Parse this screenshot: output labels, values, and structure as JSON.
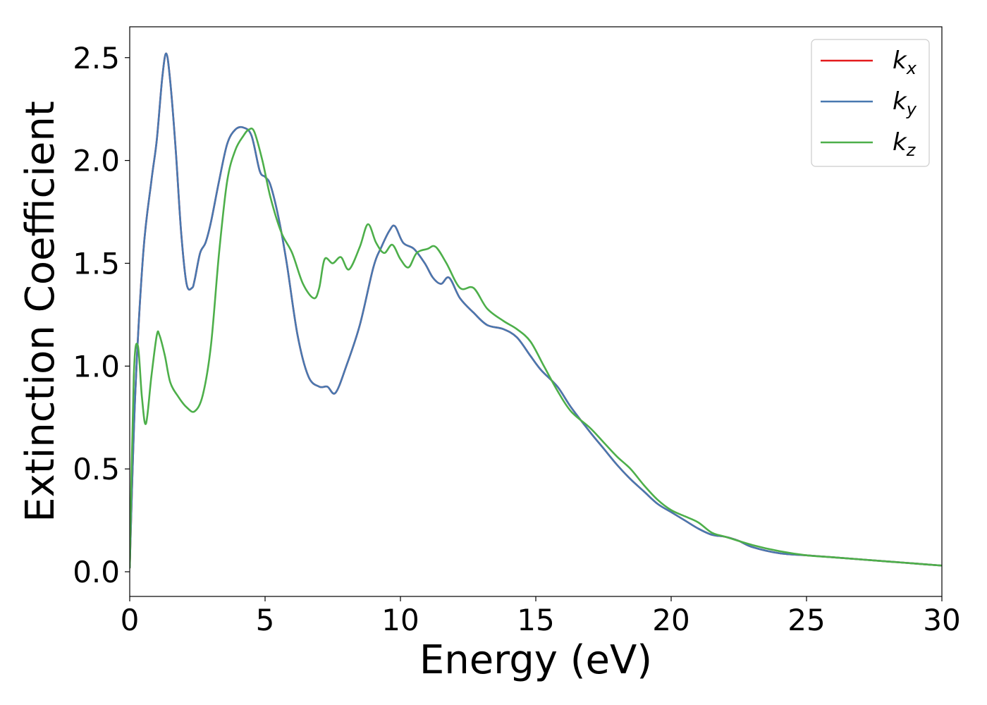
{
  "chart_data": {
    "type": "line",
    "title": "",
    "xlabel": "Energy (eV)",
    "ylabel": "Extinction Coefficient",
    "xlim": [
      0,
      30
    ],
    "ylim": [
      -0.12,
      2.65
    ],
    "xticks": [
      0,
      5,
      10,
      15,
      20,
      25,
      30
    ],
    "xtick_labels": [
      "0",
      "5",
      "10",
      "15",
      "20",
      "25",
      "30"
    ],
    "yticks": [
      0.0,
      0.5,
      1.0,
      1.5,
      2.0,
      2.5
    ],
    "ytick_labels": [
      "0.0",
      "0.5",
      "1.0",
      "1.5",
      "2.0",
      "2.5"
    ],
    "grid": false,
    "legend": "top-right",
    "series": [
      {
        "name": "k_x",
        "label_main": "k",
        "label_sub": "x",
        "color": "#e41a1c",
        "x": [
          0,
          0.2,
          0.5,
          0.8,
          1.0,
          1.2,
          1.35,
          1.5,
          1.7,
          1.9,
          2.1,
          2.3,
          2.4,
          2.6,
          2.8,
          3.0,
          3.3,
          3.6,
          3.9,
          4.2,
          4.5,
          4.8,
          5.0,
          5.2,
          5.5,
          5.8,
          6.2,
          6.6,
          7.0,
          7.3,
          7.6,
          8.0,
          8.5,
          9.0,
          9.3,
          9.6,
          9.8,
          10.1,
          10.5,
          10.9,
          11.2,
          11.5,
          11.8,
          12.2,
          12.7,
          13.2,
          13.8,
          14.3,
          14.8,
          15.2,
          15.8,
          16.3,
          17.0,
          17.5,
          18.0,
          18.5,
          19.0,
          19.5,
          20.0,
          20.5,
          21.0,
          21.5,
          22.0,
          22.5,
          23.0,
          24.0,
          25.0,
          26.0,
          27.0,
          28.0,
          29.0,
          30.0
        ],
        "values": [
          0.02,
          0.85,
          1.55,
          1.9,
          2.1,
          2.4,
          2.52,
          2.38,
          2.05,
          1.65,
          1.4,
          1.38,
          1.42,
          1.55,
          1.6,
          1.7,
          1.9,
          2.08,
          2.15,
          2.16,
          2.12,
          1.95,
          1.92,
          1.88,
          1.72,
          1.5,
          1.15,
          0.95,
          0.9,
          0.9,
          0.87,
          1.0,
          1.2,
          1.48,
          1.58,
          1.66,
          1.68,
          1.6,
          1.57,
          1.5,
          1.43,
          1.4,
          1.43,
          1.33,
          1.26,
          1.2,
          1.18,
          1.14,
          1.05,
          0.98,
          0.9,
          0.8,
          0.68,
          0.6,
          0.52,
          0.45,
          0.39,
          0.33,
          0.29,
          0.25,
          0.21,
          0.18,
          0.17,
          0.15,
          0.12,
          0.09,
          0.08,
          0.07,
          0.06,
          0.05,
          0.04,
          0.03
        ]
      },
      {
        "name": "k_y",
        "label_main": "k",
        "label_sub": "y",
        "color": "#4878b0",
        "x": [
          0,
          0.2,
          0.5,
          0.8,
          1.0,
          1.2,
          1.35,
          1.5,
          1.7,
          1.9,
          2.1,
          2.3,
          2.4,
          2.6,
          2.8,
          3.0,
          3.3,
          3.6,
          3.9,
          4.2,
          4.5,
          4.8,
          5.0,
          5.2,
          5.5,
          5.8,
          6.2,
          6.6,
          7.0,
          7.3,
          7.6,
          8.0,
          8.5,
          9.0,
          9.3,
          9.6,
          9.8,
          10.1,
          10.5,
          10.9,
          11.2,
          11.5,
          11.8,
          12.2,
          12.7,
          13.2,
          13.8,
          14.3,
          14.8,
          15.2,
          15.8,
          16.3,
          17.0,
          17.5,
          18.0,
          18.5,
          19.0,
          19.5,
          20.0,
          20.5,
          21.0,
          21.5,
          22.0,
          22.5,
          23.0,
          24.0,
          25.0,
          26.0,
          27.0,
          28.0,
          29.0,
          30.0
        ],
        "values": [
          0.02,
          0.85,
          1.55,
          1.9,
          2.1,
          2.4,
          2.52,
          2.38,
          2.05,
          1.65,
          1.4,
          1.38,
          1.42,
          1.55,
          1.6,
          1.7,
          1.9,
          2.08,
          2.15,
          2.16,
          2.12,
          1.95,
          1.92,
          1.88,
          1.72,
          1.5,
          1.15,
          0.95,
          0.9,
          0.9,
          0.87,
          1.0,
          1.2,
          1.48,
          1.58,
          1.66,
          1.68,
          1.6,
          1.57,
          1.5,
          1.43,
          1.4,
          1.43,
          1.33,
          1.26,
          1.2,
          1.18,
          1.14,
          1.05,
          0.98,
          0.9,
          0.8,
          0.68,
          0.6,
          0.52,
          0.45,
          0.39,
          0.33,
          0.29,
          0.25,
          0.21,
          0.18,
          0.17,
          0.15,
          0.12,
          0.09,
          0.08,
          0.07,
          0.06,
          0.05,
          0.04,
          0.03
        ]
      },
      {
        "name": "k_z",
        "label_main": "k",
        "label_sub": "z",
        "color": "#4daf4a",
        "x": [
          0,
          0.15,
          0.3,
          0.45,
          0.6,
          0.8,
          1.0,
          1.1,
          1.3,
          1.5,
          1.8,
          2.1,
          2.4,
          2.7,
          3.0,
          3.3,
          3.6,
          3.9,
          4.2,
          4.4,
          4.6,
          4.9,
          5.2,
          5.6,
          6.0,
          6.4,
          6.8,
          7.0,
          7.2,
          7.5,
          7.8,
          8.1,
          8.5,
          8.8,
          9.1,
          9.4,
          9.7,
          10.0,
          10.3,
          10.6,
          11.0,
          11.3,
          11.7,
          12.2,
          12.7,
          13.2,
          13.8,
          14.3,
          14.8,
          15.3,
          15.8,
          16.3,
          17.0,
          17.5,
          18.0,
          18.5,
          19.0,
          19.5,
          20.0,
          20.5,
          21.0,
          21.5,
          22.0,
          23.0,
          24.0,
          25.0,
          26.0,
          27.0,
          28.0,
          29.0,
          30.0
        ],
        "values": [
          0.02,
          0.95,
          1.1,
          0.85,
          0.72,
          0.95,
          1.15,
          1.15,
          1.05,
          0.92,
          0.85,
          0.8,
          0.78,
          0.86,
          1.1,
          1.55,
          1.9,
          2.05,
          2.12,
          2.15,
          2.14,
          2.0,
          1.82,
          1.65,
          1.55,
          1.4,
          1.33,
          1.38,
          1.52,
          1.5,
          1.53,
          1.47,
          1.58,
          1.69,
          1.6,
          1.55,
          1.59,
          1.52,
          1.48,
          1.55,
          1.57,
          1.58,
          1.5,
          1.38,
          1.38,
          1.28,
          1.22,
          1.18,
          1.12,
          1.0,
          0.88,
          0.78,
          0.7,
          0.63,
          0.56,
          0.5,
          0.42,
          0.35,
          0.3,
          0.27,
          0.24,
          0.19,
          0.17,
          0.13,
          0.1,
          0.08,
          0.07,
          0.06,
          0.05,
          0.04,
          0.03
        ]
      }
    ]
  }
}
